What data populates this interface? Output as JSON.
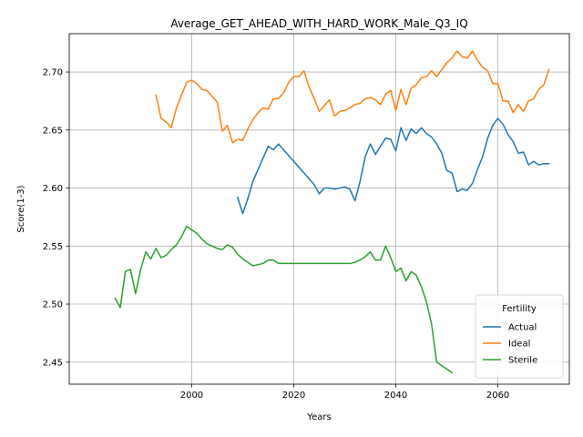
{
  "chart_data": {
    "type": "line",
    "title": "Average_GET_AHEAD_WITH_HARD_WORK_Male_Q3_IQ",
    "xlabel": "Years",
    "ylabel": "Score(1-3)",
    "xlim": [
      1976,
      2074
    ],
    "ylim": [
      2.431,
      2.733
    ],
    "xticks": [
      2000,
      2020,
      2040,
      2060
    ],
    "yticks": [
      2.45,
      2.5,
      2.55,
      2.6,
      2.65,
      2.7
    ],
    "grid": true,
    "legend": {
      "title": "Fertility",
      "placement": "bottom-right"
    },
    "series": [
      {
        "name": "Actual",
        "color": "#1f77b4",
        "points": [
          [
            2009,
            2.592
          ],
          [
            2010,
            2.578
          ],
          [
            2011,
            2.591
          ],
          [
            2012,
            2.606
          ],
          [
            2013,
            2.616
          ],
          [
            2014,
            2.626
          ],
          [
            2015,
            2.636
          ],
          [
            2016,
            2.633
          ],
          [
            2017,
            2.638
          ],
          [
            2018,
            2.633
          ],
          [
            2019,
            2.628
          ],
          [
            2020,
            2.623
          ],
          [
            2021,
            2.618
          ],
          [
            2022,
            2.613
          ],
          [
            2023,
            2.608
          ],
          [
            2024,
            2.603
          ],
          [
            2025,
            2.595
          ],
          [
            2026,
            2.6
          ],
          [
            2027,
            2.6
          ],
          [
            2028,
            2.599
          ],
          [
            2029,
            2.6
          ],
          [
            2030,
            2.601
          ],
          [
            2031,
            2.599
          ],
          [
            2032,
            2.589
          ],
          [
            2033,
            2.606
          ],
          [
            2034,
            2.627
          ],
          [
            2035,
            2.638
          ],
          [
            2036,
            2.629
          ],
          [
            2037,
            2.636
          ],
          [
            2038,
            2.643
          ],
          [
            2039,
            2.642
          ],
          [
            2040,
            2.632
          ],
          [
            2041,
            2.652
          ],
          [
            2042,
            2.641
          ],
          [
            2043,
            2.651
          ],
          [
            2044,
            2.647
          ],
          [
            2045,
            2.652
          ],
          [
            2046,
            2.647
          ],
          [
            2047,
            2.644
          ],
          [
            2048,
            2.638
          ],
          [
            2049,
            2.63
          ],
          [
            2050,
            2.615
          ],
          [
            2051,
            2.613
          ],
          [
            2052,
            2.597
          ],
          [
            2053,
            2.599
          ],
          [
            2054,
            2.598
          ],
          [
            2055,
            2.604
          ],
          [
            2056,
            2.616
          ],
          [
            2057,
            2.627
          ],
          [
            2058,
            2.643
          ],
          [
            2059,
            2.654
          ],
          [
            2060,
            2.66
          ],
          [
            2061,
            2.655
          ],
          [
            2062,
            2.646
          ],
          [
            2063,
            2.64
          ],
          [
            2064,
            2.63
          ],
          [
            2065,
            2.631
          ],
          [
            2066,
            2.62
          ],
          [
            2067,
            2.623
          ],
          [
            2068,
            2.62
          ],
          [
            2069,
            2.621
          ],
          [
            2070,
            2.621
          ]
        ]
      },
      {
        "name": "Ideal",
        "color": "#ff7f0e",
        "points": [
          [
            1993,
            2.68
          ],
          [
            1994,
            2.66
          ],
          [
            1995,
            2.657
          ],
          [
            1996,
            2.652
          ],
          [
            1997,
            2.669
          ],
          [
            1998,
            2.68
          ],
          [
            1999,
            2.691
          ],
          [
            2000,
            2.693
          ],
          [
            2001,
            2.69
          ],
          [
            2002,
            2.685
          ],
          [
            2003,
            2.684
          ],
          [
            2004,
            2.679
          ],
          [
            2005,
            2.674
          ],
          [
            2006,
            2.649
          ],
          [
            2007,
            2.654
          ],
          [
            2008,
            2.639
          ],
          [
            2009,
            2.642
          ],
          [
            2010,
            2.641
          ],
          [
            2011,
            2.651
          ],
          [
            2012,
            2.659
          ],
          [
            2013,
            2.665
          ],
          [
            2014,
            2.669
          ],
          [
            2015,
            2.668
          ],
          [
            2016,
            2.677
          ],
          [
            2017,
            2.677
          ],
          [
            2018,
            2.682
          ],
          [
            2019,
            2.691
          ],
          [
            2020,
            2.696
          ],
          [
            2021,
            2.696
          ],
          [
            2022,
            2.701
          ],
          [
            2023,
            2.687
          ],
          [
            2024,
            2.677
          ],
          [
            2025,
            2.666
          ],
          [
            2026,
            2.671
          ],
          [
            2027,
            2.676
          ],
          [
            2028,
            2.662
          ],
          [
            2029,
            2.666
          ],
          [
            2030,
            2.667
          ],
          [
            2031,
            2.669
          ],
          [
            2032,
            2.672
          ],
          [
            2033,
            2.673
          ],
          [
            2034,
            2.677
          ],
          [
            2035,
            2.678
          ],
          [
            2036,
            2.676
          ],
          [
            2037,
            2.672
          ],
          [
            2038,
            2.681
          ],
          [
            2039,
            2.684
          ],
          [
            2040,
            2.667
          ],
          [
            2041,
            2.685
          ],
          [
            2042,
            2.672
          ],
          [
            2043,
            2.686
          ],
          [
            2044,
            2.689
          ],
          [
            2045,
            2.695
          ],
          [
            2046,
            2.696
          ],
          [
            2047,
            2.701
          ],
          [
            2048,
            2.696
          ],
          [
            2049,
            2.702
          ],
          [
            2050,
            2.708
          ],
          [
            2051,
            2.712
          ],
          [
            2052,
            2.718
          ],
          [
            2053,
            2.713
          ],
          [
            2054,
            2.712
          ],
          [
            2055,
            2.718
          ],
          [
            2056,
            2.71
          ],
          [
            2057,
            2.704
          ],
          [
            2058,
            2.701
          ],
          [
            2059,
            2.69
          ],
          [
            2060,
            2.69
          ],
          [
            2061,
            2.675
          ],
          [
            2062,
            2.675
          ],
          [
            2063,
            2.665
          ],
          [
            2064,
            2.672
          ],
          [
            2065,
            2.666
          ],
          [
            2066,
            2.675
          ],
          [
            2067,
            2.677
          ],
          [
            2068,
            2.685
          ],
          [
            2069,
            2.689
          ],
          [
            2070,
            2.702
          ]
        ]
      },
      {
        "name": "Sterile",
        "color": "#2ca02c",
        "points": [
          [
            1985,
            2.505
          ],
          [
            1986,
            2.497
          ],
          [
            1987,
            2.528
          ],
          [
            1988,
            2.53
          ],
          [
            1989,
            2.509
          ],
          [
            1990,
            2.53
          ],
          [
            1991,
            2.545
          ],
          [
            1992,
            2.539
          ],
          [
            1993,
            2.548
          ],
          [
            1994,
            2.54
          ],
          [
            1995,
            2.542
          ],
          [
            1996,
            2.547
          ],
          [
            1997,
            2.551
          ],
          [
            1998,
            2.558
          ],
          [
            1999,
            2.567
          ],
          [
            2000,
            2.564
          ],
          [
            2001,
            2.561
          ],
          [
            2002,
            2.556
          ],
          [
            2003,
            2.552
          ],
          [
            2004,
            2.55
          ],
          [
            2005,
            2.548
          ],
          [
            2006,
            2.547
          ],
          [
            2007,
            2.551
          ],
          [
            2008,
            2.549
          ],
          [
            2009,
            2.543
          ],
          [
            2010,
            2.539
          ],
          [
            2011,
            2.536
          ],
          [
            2012,
            2.533
          ],
          [
            2013,
            2.534
          ],
          [
            2014,
            2.535
          ],
          [
            2015,
            2.538
          ],
          [
            2016,
            2.538
          ],
          [
            2017,
            2.535
          ],
          [
            2018,
            2.535
          ],
          [
            2019,
            2.535
          ],
          [
            2020,
            2.535
          ],
          [
            2021,
            2.535
          ],
          [
            2022,
            2.535
          ],
          [
            2023,
            2.535
          ],
          [
            2024,
            2.535
          ],
          [
            2025,
            2.535
          ],
          [
            2026,
            2.535
          ],
          [
            2027,
            2.535
          ],
          [
            2028,
            2.535
          ],
          [
            2029,
            2.535
          ],
          [
            2030,
            2.535
          ],
          [
            2031,
            2.535
          ],
          [
            2032,
            2.536
          ],
          [
            2033,
            2.538
          ],
          [
            2034,
            2.541
          ],
          [
            2035,
            2.545
          ],
          [
            2036,
            2.538
          ],
          [
            2037,
            2.538
          ],
          [
            2038,
            2.55
          ],
          [
            2039,
            2.54
          ],
          [
            2040,
            2.528
          ],
          [
            2041,
            2.531
          ],
          [
            2042,
            2.52
          ],
          [
            2043,
            2.528
          ],
          [
            2044,
            2.525
          ],
          [
            2045,
            2.515
          ],
          [
            2046,
            2.502
          ],
          [
            2047,
            2.483
          ],
          [
            2048,
            2.45
          ],
          [
            2049,
            2.447
          ],
          [
            2050,
            2.444
          ],
          [
            2051,
            2.441
          ]
        ]
      }
    ]
  }
}
